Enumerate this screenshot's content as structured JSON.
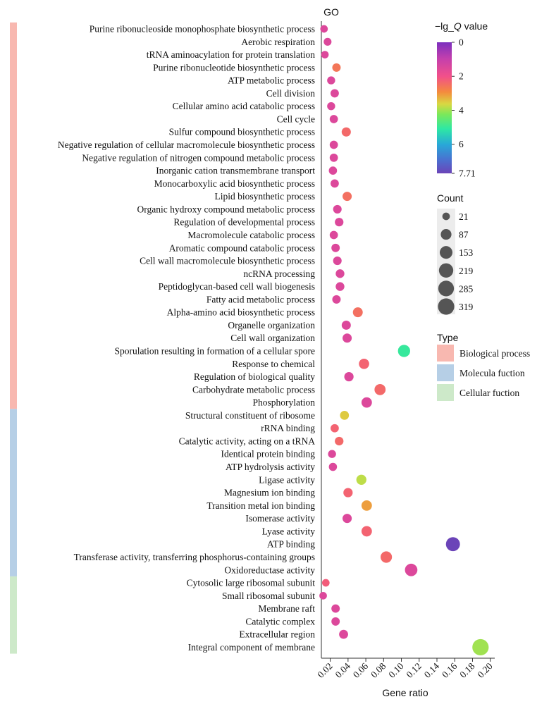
{
  "chart_data": {
    "type": "scatter",
    "title": "GO",
    "xlabel": "Gene ratio",
    "xlim": [
      0.01,
      0.205
    ],
    "xticks": [
      "0.02",
      "0.04",
      "0.06",
      "0.08",
      "0.10",
      "0.12",
      "0.14",
      "0.16",
      "0.18",
      "0.20"
    ],
    "grid": false,
    "colorbar": {
      "title_prefix": "−lg_",
      "title_italic": "Q",
      "title_suffix": " value",
      "ticks": [
        "0",
        "2",
        "4",
        "6",
        "7.71"
      ],
      "tick_values": [
        0,
        2,
        4,
        6,
        7.71
      ],
      "min": 0,
      "max": 7.71,
      "colors": [
        "#7b2fbe",
        "#f2508a",
        "#f48b3d",
        "#d9d842",
        "#7be85a",
        "#2ee8a4",
        "#28a8d8",
        "#4b6fd0",
        "#6b44b8"
      ]
    },
    "size_legend": {
      "title": "Count",
      "labels": [
        "21",
        "87",
        "153",
        "219",
        "285",
        "319"
      ],
      "values": [
        21,
        87,
        153,
        219,
        285,
        319
      ]
    },
    "type_legend": {
      "title": "Type",
      "items": [
        {
          "name": "Biological process",
          "color": "#f8b8b0"
        },
        {
          "name": "Molecula fuction",
          "color": "#b6cfe6"
        },
        {
          "name": "Cellular fuction",
          "color": "#cde9c9"
        }
      ]
    },
    "terms": [
      {
        "term": "Purine ribonucleoside monophosphate biosynthetic process",
        "x": 0.013,
        "q": 1.5,
        "count": 21,
        "type": 0
      },
      {
        "term": "Aerobic respiration",
        "x": 0.017,
        "q": 1.5,
        "count": 25,
        "type": 0
      },
      {
        "term": "tRNA aminoacylation for protein translation",
        "x": 0.014,
        "q": 1.5,
        "count": 21,
        "type": 0
      },
      {
        "term": "Purine ribonucleotide biosynthetic process",
        "x": 0.027,
        "q": 2.6,
        "count": 35,
        "type": 0
      },
      {
        "term": "ATP metabolic process",
        "x": 0.021,
        "q": 1.5,
        "count": 28,
        "type": 0
      },
      {
        "term": "Cell division",
        "x": 0.025,
        "q": 1.5,
        "count": 34,
        "type": 0
      },
      {
        "term": "Cellular amino acid catabolic process",
        "x": 0.021,
        "q": 1.5,
        "count": 28,
        "type": 0
      },
      {
        "term": "Cell cycle",
        "x": 0.024,
        "q": 1.5,
        "count": 32,
        "type": 0
      },
      {
        "term": "Sulfur compound biosynthetic process",
        "x": 0.038,
        "q": 2.4,
        "count": 50,
        "type": 0
      },
      {
        "term": "Negative regulation of cellular macromolecule biosynthetic process",
        "x": 0.024,
        "q": 1.5,
        "count": 32,
        "type": 0
      },
      {
        "term": "Negative regulation of nitrogen compound metabolic process",
        "x": 0.024,
        "q": 1.5,
        "count": 32,
        "type": 0
      },
      {
        "term": "Inorganic cation transmembrane transport",
        "x": 0.023,
        "q": 1.5,
        "count": 31,
        "type": 0
      },
      {
        "term": "Monocarboxylic acid biosynthetic process",
        "x": 0.025,
        "q": 1.5,
        "count": 33,
        "type": 0
      },
      {
        "term": "Lipid biosynthetic process",
        "x": 0.039,
        "q": 2.5,
        "count": 50,
        "type": 0
      },
      {
        "term": "Organic hydroxy compound metabolic process",
        "x": 0.028,
        "q": 1.5,
        "count": 37,
        "type": 0
      },
      {
        "term": "Regulation of developmental process",
        "x": 0.03,
        "q": 1.5,
        "count": 38,
        "type": 0
      },
      {
        "term": "Macromolecule catabolic process",
        "x": 0.024,
        "q": 1.5,
        "count": 32,
        "type": 0
      },
      {
        "term": "Aromatic compound catabolic process",
        "x": 0.026,
        "q": 1.5,
        "count": 34,
        "type": 0
      },
      {
        "term": "Cell wall macromolecule biosynthetic process",
        "x": 0.028,
        "q": 1.5,
        "count": 37,
        "type": 0
      },
      {
        "term": "ncRNA processing",
        "x": 0.031,
        "q": 1.5,
        "count": 40,
        "type": 0
      },
      {
        "term": "Peptidoglycan-based cell wall biogenesis",
        "x": 0.031,
        "q": 1.5,
        "count": 40,
        "type": 0
      },
      {
        "term": "Fatty acid metabolic process",
        "x": 0.027,
        "q": 1.5,
        "count": 35,
        "type": 0
      },
      {
        "term": "Alpha-amino acid biosynthetic process",
        "x": 0.051,
        "q": 2.5,
        "count": 65,
        "type": 0
      },
      {
        "term": "Organelle organization",
        "x": 0.038,
        "q": 1.5,
        "count": 49,
        "type": 0
      },
      {
        "term": "Cell wall organization",
        "x": 0.039,
        "q": 1.5,
        "count": 50,
        "type": 0
      },
      {
        "term": "Sporulation resulting in formation of a cellular spore",
        "x": 0.103,
        "q": 5.0,
        "count": 135,
        "type": 0
      },
      {
        "term": "Response to chemical",
        "x": 0.058,
        "q": 2.3,
        "count": 76,
        "type": 0
      },
      {
        "term": "Regulation of biological quality",
        "x": 0.041,
        "q": 1.5,
        "count": 53,
        "type": 0
      },
      {
        "term": "Carbohydrate metabolic process",
        "x": 0.076,
        "q": 2.4,
        "count": 99,
        "type": 0
      },
      {
        "term": "Phosphorylation",
        "x": 0.061,
        "q": 1.5,
        "count": 80,
        "type": 0
      },
      {
        "term": "Structural constituent of ribosome",
        "x": 0.036,
        "q": 3.5,
        "count": 45,
        "type": 1
      },
      {
        "term": "rRNA binding",
        "x": 0.025,
        "q": 2.3,
        "count": 32,
        "type": 1
      },
      {
        "term": "Catalytic activity, acting on a tRNA",
        "x": 0.03,
        "q": 2.4,
        "count": 39,
        "type": 1
      },
      {
        "term": "Identical protein binding",
        "x": 0.022,
        "q": 1.5,
        "count": 28,
        "type": 1
      },
      {
        "term": "ATP hydrolysis activity",
        "x": 0.023,
        "q": 1.5,
        "count": 30,
        "type": 1
      },
      {
        "term": "Ligase activity",
        "x": 0.055,
        "q": 3.8,
        "count": 71,
        "type": 1
      },
      {
        "term": "Magnesium ion binding",
        "x": 0.04,
        "q": 2.3,
        "count": 52,
        "type": 1
      },
      {
        "term": "Transition metal ion binding",
        "x": 0.061,
        "q": 3.1,
        "count": 80,
        "type": 1
      },
      {
        "term": "Isomerase activity",
        "x": 0.039,
        "q": 1.5,
        "count": 51,
        "type": 1
      },
      {
        "term": "Lyase activity",
        "x": 0.061,
        "q": 2.3,
        "count": 80,
        "type": 1
      },
      {
        "term": "ATP binding",
        "x": 0.158,
        "q": 7.71,
        "count": 207,
        "type": 1
      },
      {
        "term": "Transferase activity, transferring phosphorus-containing groups",
        "x": 0.083,
        "q": 2.4,
        "count": 108,
        "type": 1
      },
      {
        "term": "Oxidoreductase activity",
        "x": 0.111,
        "q": 1.5,
        "count": 145,
        "type": 1
      },
      {
        "term": "Cytosolic large ribosomal subunit",
        "x": 0.015,
        "q": 2.2,
        "count": 21,
        "type": 2
      },
      {
        "term": "Small ribosomal subunit",
        "x": 0.012,
        "q": 1.5,
        "count": 21,
        "type": 2
      },
      {
        "term": "Membrane raft",
        "x": 0.026,
        "q": 1.5,
        "count": 34,
        "type": 2
      },
      {
        "term": "Catalytic complex",
        "x": 0.026,
        "q": 1.5,
        "count": 34,
        "type": 2
      },
      {
        "term": "Extracellular region",
        "x": 0.035,
        "q": 1.5,
        "count": 46,
        "type": 2
      },
      {
        "term": "Integral component of membrane",
        "x": 0.189,
        "q": 4.0,
        "count": 319,
        "type": 2
      }
    ]
  }
}
